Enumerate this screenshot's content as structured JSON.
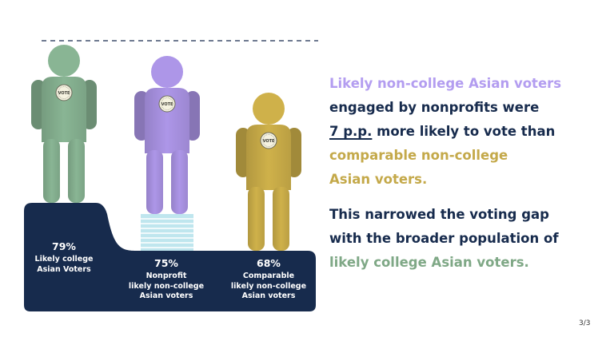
{
  "chart_data": {
    "type": "bar",
    "style": "pictograph",
    "categories": [
      "Likely college Asian Voters",
      "Nonprofit likely non-college Asian voters",
      "Comparable likely non-college Asian voters"
    ],
    "values": [
      79,
      75,
      68
    ],
    "value_labels": [
      "79%",
      "75%",
      "68%"
    ],
    "unit": "%",
    "reference_line": {
      "value": 79,
      "style": "dashed"
    },
    "figure_badge_text": "VOTE",
    "colors": {
      "college": "#89b594",
      "nonprofit": "#ad96e8",
      "comparable": "#cfb14a",
      "base": "#172b4d",
      "stack": "#bfe6ee",
      "stack_line": "#ffffff"
    }
  },
  "labels": {
    "college": {
      "pct": "79%",
      "line1": "Likely college",
      "line2": "Asian Voters"
    },
    "nonprofit": {
      "pct": "75%",
      "line1": "Nonprofit",
      "line2": "likely non-college",
      "line3": "Asian voters"
    },
    "comparable": {
      "pct": "68%",
      "line1": "Comparable",
      "line2": "likely non-college",
      "line3": "Asian voters"
    }
  },
  "message1": {
    "part1": "Likely non-college Asian voters",
    "part2": "engaged by nonprofits were",
    "part3": "7 p.p.",
    "part4": "more likely to vote than",
    "part5": "comparable non-college",
    "part6": "Asian voters."
  },
  "message2": {
    "part1": "This narrowed the voting gap",
    "part2": "with the broader population of",
    "part3": "likely college Asian voters."
  },
  "page_number": "3/3",
  "text_colors": {
    "navy": "#172b4d",
    "purple": "#b39df0",
    "gold": "#c4a94a",
    "green": "#7fa886"
  }
}
